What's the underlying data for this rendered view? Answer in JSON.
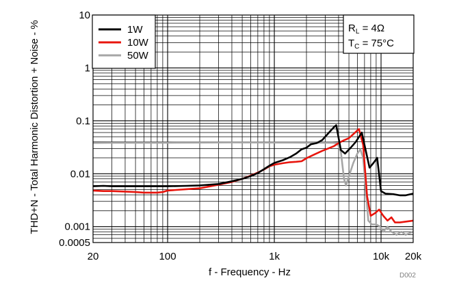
{
  "chart_data": {
    "type": "line",
    "xlabel": "f - Frequency - Hz",
    "ylabel": "THD+N - Total Harmonic Distortion + Noise - %",
    "xscale": "log",
    "yscale": "log",
    "xlim": [
      20,
      20000
    ],
    "ylim": [
      0.0005,
      10
    ],
    "grid": true,
    "x_ticks": [
      {
        "value": 20,
        "label": "20"
      },
      {
        "value": 100,
        "label": "100"
      },
      {
        "value": 1000,
        "label": "1k"
      },
      {
        "value": 10000,
        "label": "10k"
      },
      {
        "value": 20000,
        "label": "20k"
      }
    ],
    "y_ticks": [
      {
        "value": 10,
        "label": "10"
      },
      {
        "value": 1,
        "label": "1"
      },
      {
        "value": 0.1,
        "label": "0.1"
      },
      {
        "value": 0.01,
        "label": "0.01"
      },
      {
        "value": 0.001,
        "label": "0.001"
      },
      {
        "value": 0.0005,
        "label": "0.0005"
      }
    ],
    "legend": {
      "position": "top-left",
      "entries": [
        {
          "label": "1W",
          "color": "#000000"
        },
        {
          "label": "10W",
          "color": "#e8140c"
        },
        {
          "label": "50W",
          "color": "#a6a6a6"
        }
      ]
    },
    "annotation": {
      "position": "top-right",
      "line1": {
        "main": "R",
        "sub": "L",
        "rest": " = 4Ω"
      },
      "line2": {
        "main": "T",
        "sub": "C",
        "rest": " = 75°C"
      }
    },
    "figure_id": "D002",
    "series": [
      {
        "name": "1W",
        "color": "#000000",
        "points": [
          [
            20,
            0.0058
          ],
          [
            25,
            0.0059
          ],
          [
            30,
            0.0058
          ],
          [
            40,
            0.0058
          ],
          [
            50,
            0.0058
          ],
          [
            70,
            0.0058
          ],
          [
            100,
            0.0058
          ],
          [
            150,
            0.0059
          ],
          [
            200,
            0.006
          ],
          [
            300,
            0.0064
          ],
          [
            400,
            0.0072
          ],
          [
            500,
            0.008
          ],
          [
            600,
            0.009
          ],
          [
            700,
            0.0103
          ],
          [
            800,
            0.0122
          ],
          [
            900,
            0.0142
          ],
          [
            1000,
            0.016
          ],
          [
            1200,
            0.018
          ],
          [
            1400,
            0.0205
          ],
          [
            1600,
            0.024
          ],
          [
            1800,
            0.029
          ],
          [
            2000,
            0.031
          ],
          [
            2200,
            0.036
          ],
          [
            2500,
            0.038
          ],
          [
            2800,
            0.043
          ],
          [
            3200,
            0.058
          ],
          [
            3600,
            0.075
          ],
          [
            3800,
            0.083
          ],
          [
            4200,
            0.028
          ],
          [
            4600,
            0.024
          ],
          [
            5200,
            0.031
          ],
          [
            5800,
            0.04
          ],
          [
            6600,
            0.06
          ],
          [
            7200,
            0.027
          ],
          [
            7800,
            0.013
          ],
          [
            8500,
            0.016
          ],
          [
            9200,
            0.02
          ],
          [
            10000,
            0.0047
          ],
          [
            11000,
            0.0042
          ],
          [
            13000,
            0.0041
          ],
          [
            15000,
            0.0039
          ],
          [
            17000,
            0.0039
          ],
          [
            20000,
            0.0042
          ]
        ]
      },
      {
        "name": "10W",
        "color": "#e8140c",
        "points": [
          [
            20,
            0.0048
          ],
          [
            25,
            0.0047
          ],
          [
            30,
            0.0047
          ],
          [
            40,
            0.0046
          ],
          [
            50,
            0.0045
          ],
          [
            60,
            0.0044
          ],
          [
            70,
            0.0044
          ],
          [
            80,
            0.0044
          ],
          [
            90,
            0.0045
          ],
          [
            100,
            0.0048
          ],
          [
            150,
            0.0051
          ],
          [
            200,
            0.0053
          ],
          [
            300,
            0.0062
          ],
          [
            400,
            0.007
          ],
          [
            500,
            0.008
          ],
          [
            600,
            0.0092
          ],
          [
            700,
            0.0105
          ],
          [
            800,
            0.012
          ],
          [
            900,
            0.0138
          ],
          [
            1000,
            0.0148
          ],
          [
            1200,
            0.0158
          ],
          [
            1400,
            0.0165
          ],
          [
            1600,
            0.0168
          ],
          [
            1800,
            0.0172
          ],
          [
            2000,
            0.0196
          ],
          [
            2400,
            0.0234
          ],
          [
            2800,
            0.027
          ],
          [
            3200,
            0.03
          ],
          [
            3600,
            0.033
          ],
          [
            4000,
            0.038
          ],
          [
            4400,
            0.042
          ],
          [
            5000,
            0.047
          ],
          [
            5600,
            0.058
          ],
          [
            6200,
            0.07
          ],
          [
            6800,
            0.035
          ],
          [
            7400,
            0.0038
          ],
          [
            8000,
            0.0016
          ],
          [
            8800,
            0.0018
          ],
          [
            9600,
            0.0021
          ],
          [
            10500,
            0.0016
          ],
          [
            11500,
            0.0013
          ],
          [
            12500,
            0.0015
          ],
          [
            13500,
            0.0012
          ],
          [
            15000,
            0.0012
          ],
          [
            20000,
            0.0013
          ]
        ]
      },
      {
        "name": "50W",
        "color": "#a6a6a6",
        "points": [
          [
            20,
            0.0382
          ],
          [
            30,
            0.0384
          ],
          [
            50,
            0.0385
          ],
          [
            100,
            0.0386
          ],
          [
            200,
            0.0388
          ],
          [
            400,
            0.039
          ],
          [
            700,
            0.0389
          ],
          [
            1000,
            0.0388
          ],
          [
            1500,
            0.0388
          ],
          [
            2000,
            0.0387
          ],
          [
            3000,
            0.0386
          ],
          [
            3500,
            0.0386
          ],
          [
            3900,
            0.038
          ],
          [
            4200,
            0.026
          ],
          [
            4500,
            0.008
          ],
          [
            4700,
            0.006
          ],
          [
            5000,
            0.009
          ],
          [
            5500,
            0.016
          ],
          [
            6000,
            0.024
          ],
          [
            6400,
            0.029
          ],
          [
            6800,
            0.02
          ],
          [
            7200,
            0.005
          ],
          [
            7600,
            0.0013
          ],
          [
            8200,
            0.0011
          ],
          [
            9000,
            0.0011
          ],
          [
            9800,
            0.001
          ],
          [
            10500,
            0.0008
          ],
          [
            11500,
            0.001
          ],
          [
            12500,
            0.0008
          ],
          [
            14000,
            0.0007
          ],
          [
            15500,
            0.0008
          ],
          [
            17000,
            0.0007
          ],
          [
            20000,
            0.0008
          ]
        ]
      }
    ]
  }
}
